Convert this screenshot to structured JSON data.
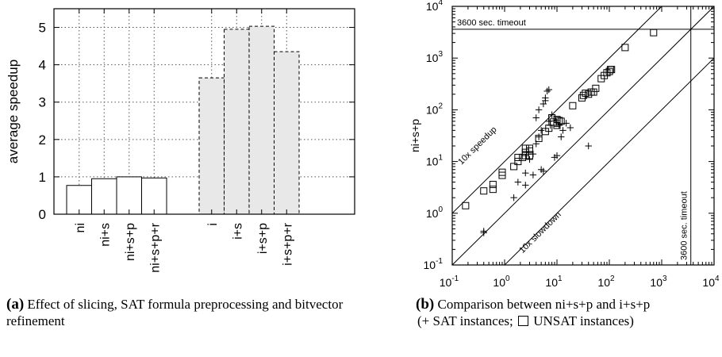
{
  "chart_data": [
    {
      "type": "bar",
      "ylabel": "average speedup",
      "ylim": [
        0,
        5.5
      ],
      "yticks": [
        0,
        1,
        2,
        3,
        4,
        5
      ],
      "grid": true,
      "groups": [
        {
          "style": "white-solid",
          "categories": [
            "ni",
            "ni+s",
            "ni+s+p",
            "ni+s+p+r"
          ],
          "values": [
            0.77,
            0.95,
            1.0,
            0.97
          ]
        },
        {
          "style": "gray-dashed",
          "categories": [
            "i",
            "i+s",
            "i+s+p",
            "i+s+p+r"
          ],
          "values": [
            3.65,
            4.95,
            5.03,
            4.35
          ]
        }
      ],
      "caption_label": "(a)",
      "caption_text": "Effect of slicing, SAT formula preprocessing and bitvector refinement"
    },
    {
      "type": "scatter",
      "xlabel": "i+s+p",
      "ylabel": "ni+s+p",
      "xscale": "log",
      "yscale": "log",
      "xlim": [
        0.1,
        10000
      ],
      "ylim": [
        0.1,
        10000
      ],
      "xticks": [
        {
          "base": "10",
          "exp": "-1"
        },
        {
          "base": "10",
          "exp": "0"
        },
        {
          "base": "10",
          "exp": "1"
        },
        {
          "base": "10",
          "exp": "2"
        },
        {
          "base": "10",
          "exp": "3"
        },
        {
          "base": "10",
          "exp": "4"
        }
      ],
      "yticks": [
        {
          "base": "10",
          "exp": "-1"
        },
        {
          "base": "10",
          "exp": "0"
        },
        {
          "base": "10",
          "exp": "1"
        },
        {
          "base": "10",
          "exp": "2"
        },
        {
          "base": "10",
          "exp": "3"
        },
        {
          "base": "10",
          "exp": "4"
        }
      ],
      "annotations": {
        "timeout_h": "3600 sec. timeout",
        "timeout_v": "3600 sec. timeout",
        "speedup": "10x speedup",
        "slowdown": "10x slowdown"
      },
      "reference_lines": {
        "timeout": 3600,
        "diagonal_factors": [
          10,
          1,
          0.1
        ]
      },
      "series": [
        {
          "symbol": "plus",
          "points": [
            [
              0.4,
              0.45
            ],
            [
              0.4,
              0.42
            ],
            [
              1.5,
              2.0
            ],
            [
              2.5,
              3.5
            ],
            [
              3.5,
              5.5
            ],
            [
              5,
              7
            ],
            [
              5.5,
              6.5
            ],
            [
              1.8,
              4
            ],
            [
              2.5,
              6
            ],
            [
              3,
              11
            ],
            [
              3.5,
              14
            ],
            [
              4,
              22
            ],
            [
              4.5,
              30
            ],
            [
              5,
              40
            ],
            [
              4,
              70
            ],
            [
              4.5,
              100
            ],
            [
              6,
              170
            ],
            [
              6.5,
              230
            ],
            [
              7,
              245
            ],
            [
              5.5,
              130
            ],
            [
              6,
              150
            ],
            [
              7,
              60
            ],
            [
              7.5,
              50
            ],
            [
              9,
              12
            ],
            [
              10,
              13
            ],
            [
              8,
              80
            ],
            [
              11,
              50
            ],
            [
              13,
              40
            ],
            [
              15,
              55
            ],
            [
              18,
              45
            ],
            [
              40,
              20
            ],
            [
              12,
              30
            ]
          ]
        },
        {
          "symbol": "square",
          "points": [
            [
              0.18,
              1.4
            ],
            [
              0.4,
              2.7
            ],
            [
              0.6,
              2.9
            ],
            [
              0.6,
              3.6
            ],
            [
              0.9,
              5.4
            ],
            [
              0.9,
              6.2
            ],
            [
              1.5,
              8
            ],
            [
              1.8,
              10
            ],
            [
              1.8,
              12
            ],
            [
              2.2,
              12
            ],
            [
              2.5,
              13
            ],
            [
              2.5,
              15
            ],
            [
              3,
              16
            ],
            [
              2.5,
              18
            ],
            [
              3,
              18
            ],
            [
              3,
              13
            ],
            [
              4.5,
              28
            ],
            [
              6,
              38
            ],
            [
              7,
              44
            ],
            [
              8,
              70
            ],
            [
              8.5,
              58
            ],
            [
              10,
              50
            ],
            [
              10,
              55
            ],
            [
              10,
              65
            ],
            [
              11,
              62
            ],
            [
              12,
              60
            ],
            [
              20,
              120
            ],
            [
              30,
              170
            ],
            [
              32,
              190
            ],
            [
              35,
              210
            ],
            [
              40,
              200
            ],
            [
              45,
              220
            ],
            [
              50,
              220
            ],
            [
              55,
              260
            ],
            [
              70,
              400
            ],
            [
              80,
              460
            ],
            [
              90,
              520
            ],
            [
              100,
              550
            ],
            [
              105,
              600
            ],
            [
              110,
              600
            ],
            [
              200,
              1600
            ],
            [
              700,
              3100
            ]
          ]
        }
      ],
      "caption_label": "(b)",
      "caption_text": "Comparison between ni+s+p and i+s+p",
      "caption_line2_prefix": "(+ SAT instances;",
      "caption_line2_suffix": "UNSAT instances)"
    }
  ]
}
